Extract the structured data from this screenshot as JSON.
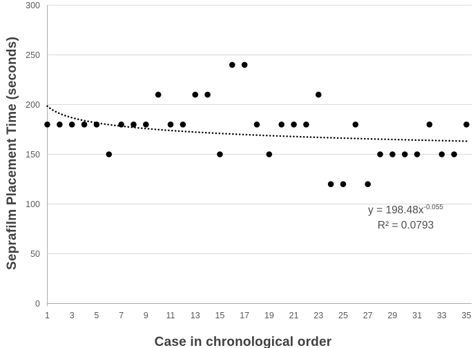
{
  "chart_data": {
    "type": "scatter",
    "title": "",
    "xlabel": "Case in chronological order",
    "ylabel": "Seprafilm Placement Time (seconds)",
    "x": [
      1,
      2,
      3,
      4,
      5,
      6,
      7,
      8,
      9,
      10,
      11,
      12,
      13,
      14,
      15,
      16,
      17,
      18,
      19,
      20,
      21,
      22,
      23,
      24,
      25,
      26,
      27,
      28,
      29,
      30,
      31,
      32,
      33,
      34,
      35
    ],
    "y": [
      180,
      180,
      180,
      180,
      180,
      150,
      180,
      180,
      180,
      210,
      180,
      180,
      210,
      210,
      150,
      240,
      240,
      180,
      150,
      180,
      180,
      180,
      210,
      120,
      120,
      180,
      120,
      150,
      150,
      150,
      150,
      180,
      150,
      150,
      180
    ],
    "xlim": [
      1,
      35
    ],
    "ylim": [
      0,
      300
    ],
    "x_ticks": [
      1,
      3,
      5,
      7,
      9,
      11,
      13,
      15,
      17,
      19,
      21,
      23,
      25,
      27,
      29,
      31,
      33,
      35
    ],
    "y_ticks": [
      0,
      50,
      100,
      150,
      200,
      250,
      300
    ],
    "grid": "horizontal",
    "legend": "none",
    "marker": {
      "shape": "circle",
      "color": "#000000",
      "radius": 4.3
    },
    "trendline": {
      "type": "power",
      "coefficient": 198.48,
      "exponent": -0.055,
      "style": "dotted",
      "color": "#000000"
    },
    "annotation": {
      "equation_base": "y = 198.48x",
      "equation_exponent": "-0.055",
      "r_squared": "R² = 0.0793"
    }
  },
  "colors": {
    "gridline": "#d9d9d9",
    "axis_line": "#adadad",
    "tick_label": "#595959",
    "axis_title": "#404040",
    "annotation_text": "#4d4d4d",
    "background": "#ffffff"
  }
}
